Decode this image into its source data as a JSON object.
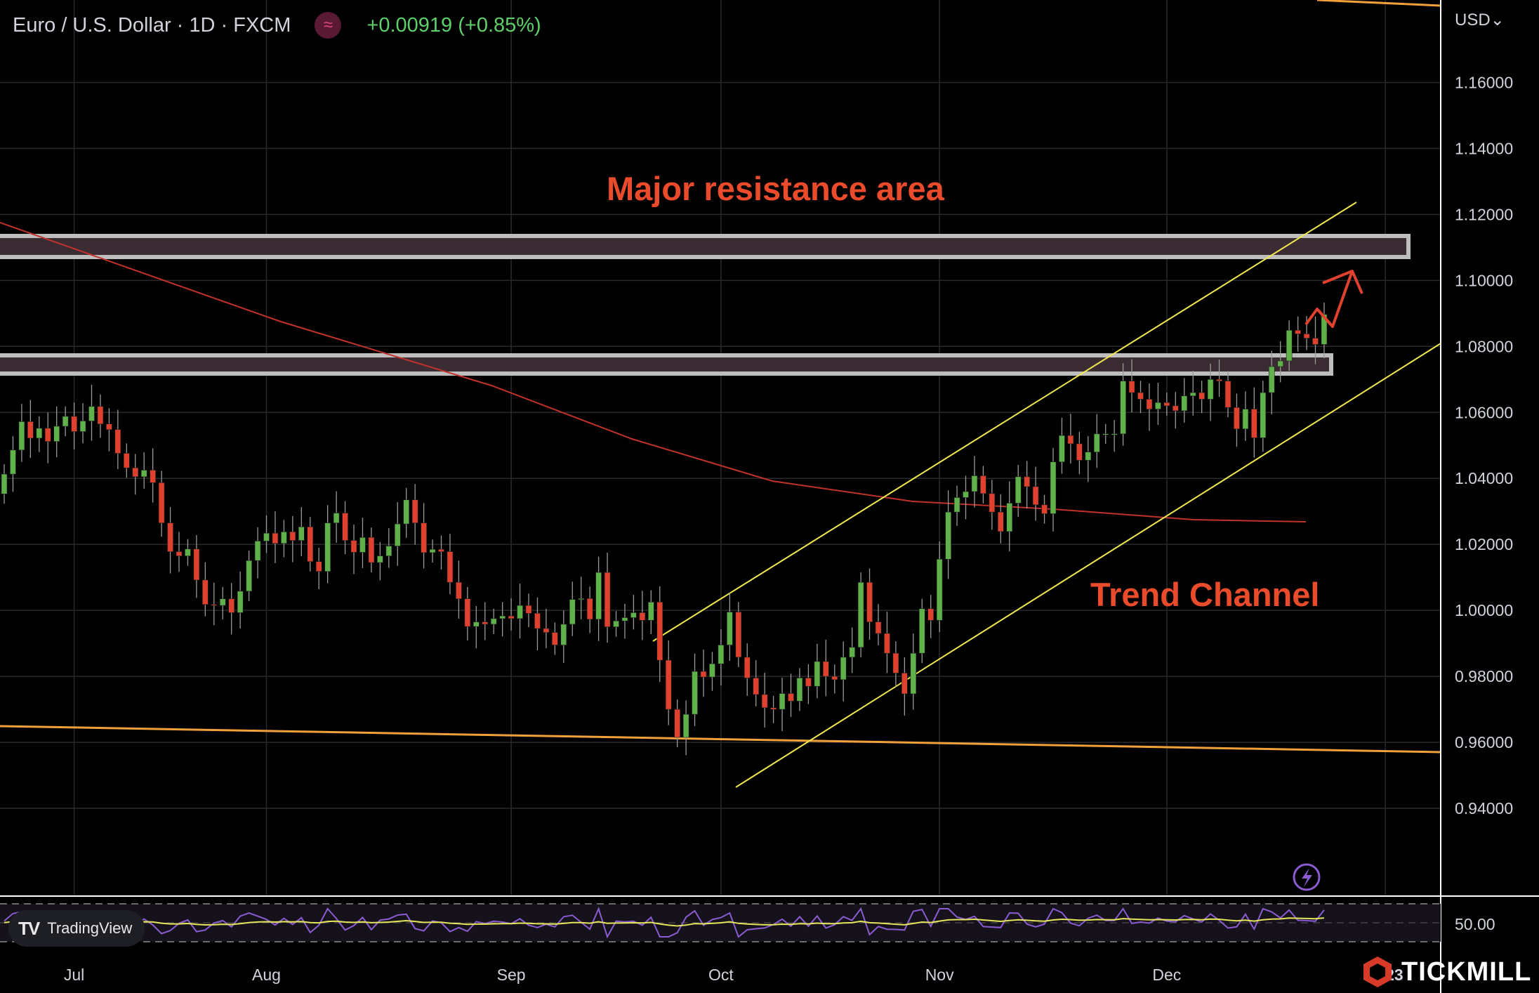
{
  "header": {
    "symbol": "Euro / U.S. Dollar · 1D · FXCM",
    "indicator_icon": "≈",
    "change": "+0.00919 (+0.85%)"
  },
  "currency_selector": "USD⌄",
  "branding": {
    "tradingview": "TradingView",
    "tradingview_mark": "TV",
    "tickmill": "TICKMILL"
  },
  "colors": {
    "background": "#000000",
    "up": "#5fb24a",
    "down": "#e0412e",
    "channel": "#f2e94e",
    "support_line": "#f2a03a",
    "ma_line": "#c0322a",
    "zone_fill": "#3b2b33",
    "zone_border": "#bdbdbd",
    "annotation": "#ea4b2b",
    "rsi": "#8a5bd1",
    "rsi_ma": "#e6e65a"
  },
  "chart_data": {
    "type": "candlestick",
    "title": "Euro / U.S. Dollar · 1D · FXCM",
    "y_ticks": [
      "1.16000",
      "1.14000",
      "1.12000",
      "1.10000",
      "1.08000",
      "1.06000",
      "1.04000",
      "1.02000",
      "1.00000",
      "0.98000",
      "0.96000",
      "0.94000"
    ],
    "y_range": [
      0.9134,
      1.185
    ],
    "x_ticks": [
      "Jul",
      "Aug",
      "Sep",
      "Oct",
      "Nov",
      "Dec",
      "2023"
    ],
    "closes": [
      1.0413,
      1.0486,
      1.0572,
      1.0522,
      1.0552,
      1.0512,
      1.0558,
      1.0588,
      1.0542,
      1.0574,
      1.0618,
      1.0565,
      1.0548,
      1.0476,
      1.0432,
      1.0405,
      1.0425,
      1.0387,
      1.0265,
      1.0178,
      1.0165,
      1.0186,
      1.0092,
      1.0018,
      1.0015,
      1.0035,
      0.9993,
      1.0058,
      1.0151,
      1.021,
      1.0234,
      1.0203,
      1.0238,
      1.0212,
      1.0253,
      1.0148,
      1.0118,
      1.0265,
      1.0295,
      1.0212,
      1.0176,
      1.0221,
      1.0145,
      1.0165,
      1.0195,
      1.0262,
      1.0335,
      1.0265,
      1.0175,
      1.0185,
      1.0178,
      1.0085,
      1.0035,
      0.9951,
      0.9965,
      0.9958,
      0.9975,
      0.9983,
      0.9975,
      1.0015,
      0.9991,
      0.9945,
      0.9933,
      0.9895,
      0.9958,
      1.0033,
      1.0036,
      0.9973,
      1.0115,
      0.995,
      0.9968,
      0.9978,
      0.9993,
      0.997,
      1.0025,
      0.9849,
      0.97,
      0.9615,
      0.9685,
      0.9815,
      0.9798,
      0.9838,
      0.9895,
      0.9995,
      0.9858,
      0.9795,
      0.9745,
      0.9705,
      0.97,
      0.9748,
      0.9725,
      0.9795,
      0.977,
      0.9845,
      0.98,
      0.979,
      0.9858,
      0.9888,
      1.0085,
      0.9965,
      0.993,
      0.987,
      0.981,
      0.9747,
      0.987,
      1.0005,
      0.997,
      1.0155,
      1.0298,
      1.0342,
      1.036,
      1.0408,
      1.0354,
      1.0298,
      1.0239,
      1.0325,
      1.0405,
      1.0375,
      1.032,
      1.0293,
      1.045,
      1.053,
      1.0505,
      1.0455,
      1.048,
      1.0535,
      1.0535,
      1.0535,
      1.0695,
      1.066,
      1.064,
      1.061,
      1.063,
      1.062,
      1.0605,
      1.065,
      1.066,
      1.064,
      1.07,
      1.0695,
      1.0615,
      1.055,
      1.061,
      1.0523,
      1.066,
      1.0739,
      1.0756,
      1.0849,
      1.0838,
      1.0825,
      1.0806,
      1.0897
    ],
    "moving_average_end": 1.0306,
    "annotations": [
      "Major resistance area",
      "Trend Channel"
    ],
    "rsi_level": "50.00"
  }
}
